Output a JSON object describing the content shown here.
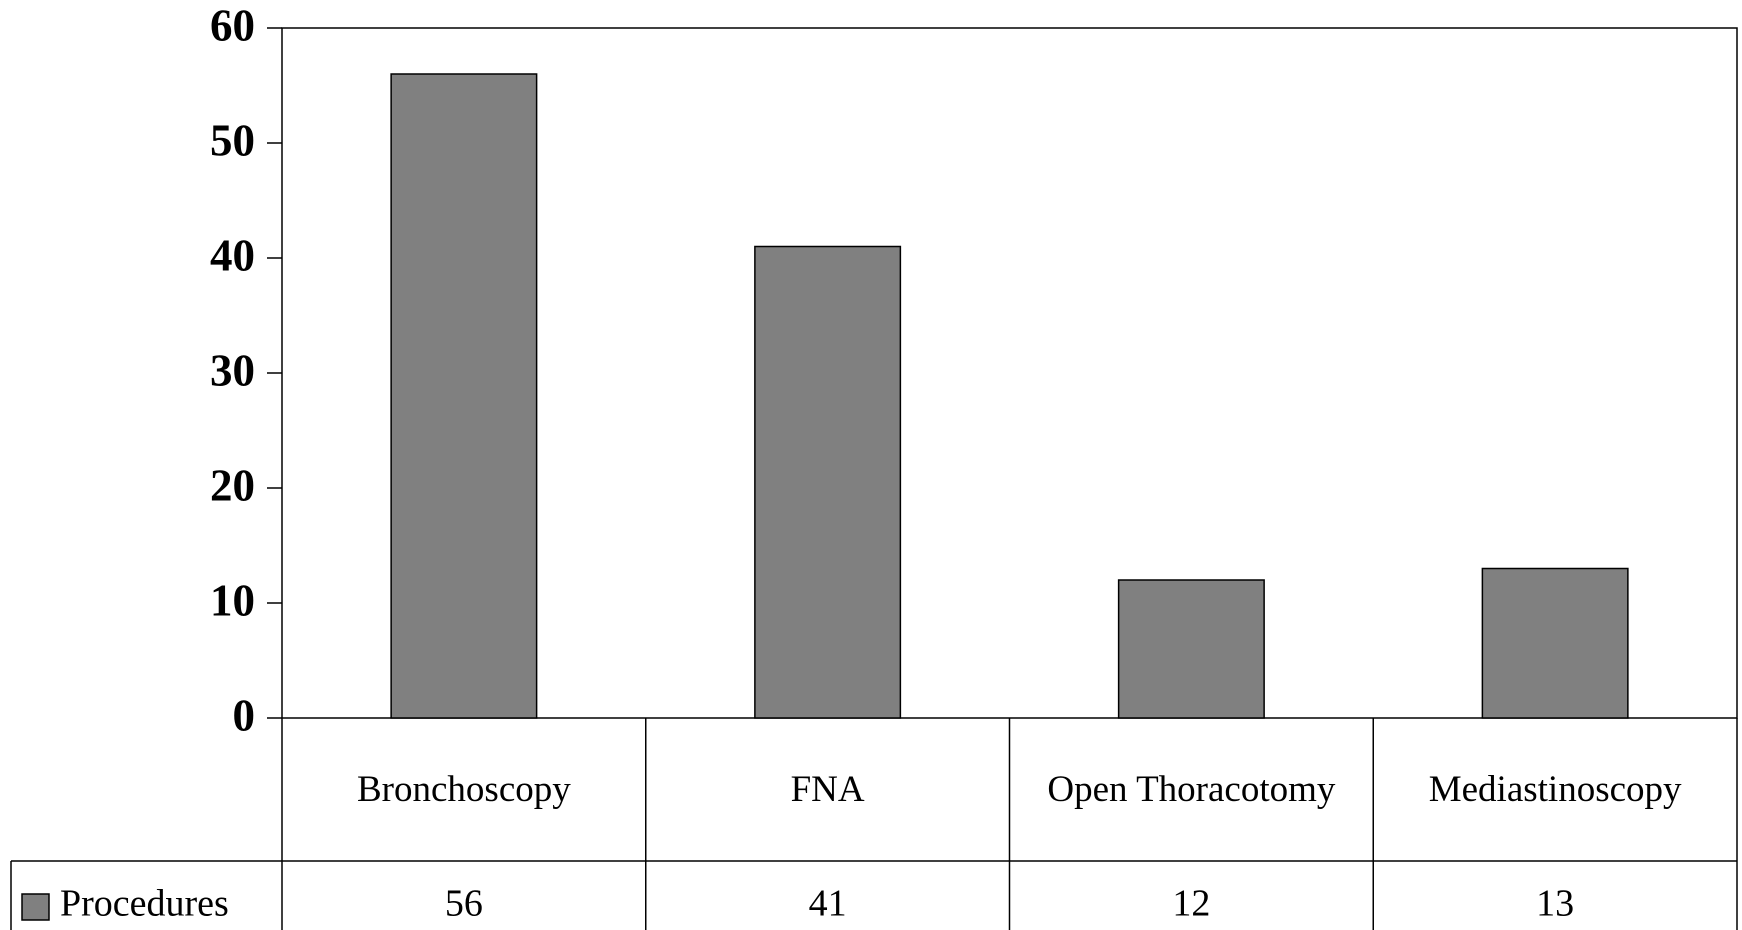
{
  "chart_data": {
    "type": "bar",
    "categories": [
      "Bronchoscopy",
      "FNA",
      "Open Thoracotomy",
      "Mediastinoscopy"
    ],
    "series": [
      {
        "name": "Procedures",
        "color": "#808080",
        "values": [
          56,
          41,
          12,
          13
        ]
      }
    ],
    "ylim": [
      0,
      60
    ],
    "yticks": [
      0,
      10,
      20,
      30,
      40,
      50,
      60
    ],
    "grid": false,
    "legend": "bottom-left"
  }
}
